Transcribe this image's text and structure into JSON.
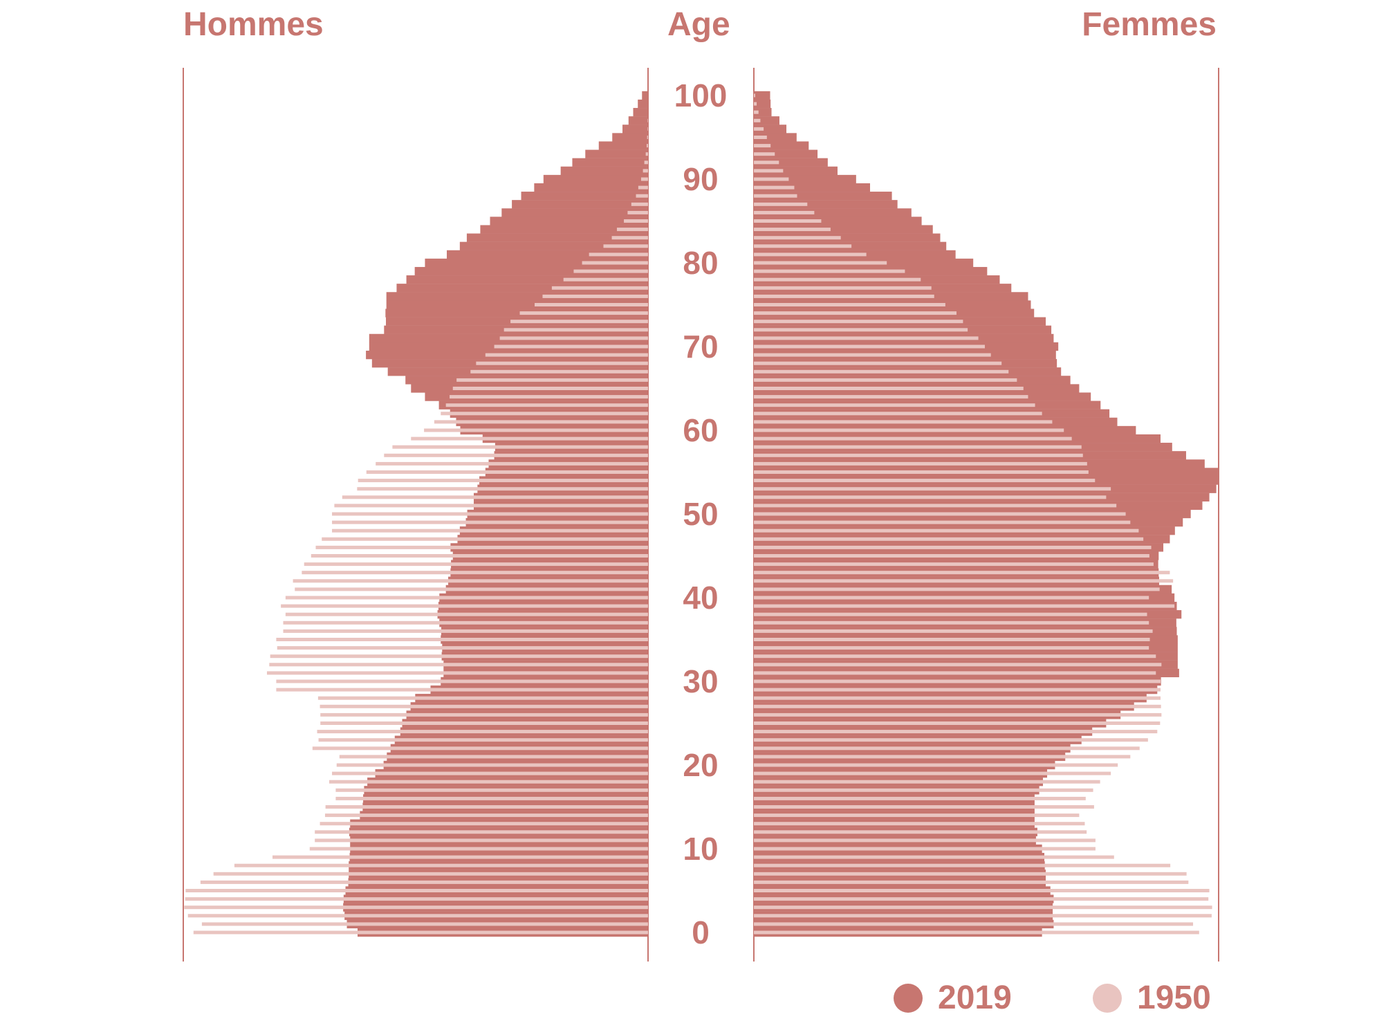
{
  "headers": {
    "men": "Hommes",
    "age": "Age",
    "women": "Femmes"
  },
  "colors": {
    "current": "#c77670",
    "past": "#e9c4c0",
    "axis": "#c77670"
  },
  "legend": [
    {
      "label": "2019",
      "color": "#c77670"
    },
    {
      "label": "1950",
      "color": "#e9c4c0"
    }
  ],
  "chart_data": {
    "type": "bar",
    "orientation": "horizontal",
    "subtype": "population-pyramid",
    "y_ticks": [
      0,
      10,
      20,
      30,
      40,
      50,
      60,
      70,
      80,
      90,
      100
    ],
    "bar_value_range": [
      0,
      1
    ],
    "series": [
      {
        "name": "2019",
        "values": {
          "men": [
            0.625,
            0.648,
            0.653,
            0.656,
            0.655,
            0.651,
            0.645,
            0.644,
            0.644,
            0.642,
            0.641,
            0.641,
            0.643,
            0.641,
            0.62,
            0.614,
            0.613,
            0.611,
            0.604,
            0.587,
            0.569,
            0.562,
            0.554,
            0.545,
            0.533,
            0.529,
            0.52,
            0.511,
            0.501,
            0.468,
            0.446,
            0.44,
            0.44,
            0.444,
            0.443,
            0.446,
            0.445,
            0.449,
            0.453,
            0.451,
            0.449,
            0.435,
            0.43,
            0.425,
            0.424,
            0.42,
            0.425,
            0.41,
            0.405,
            0.392,
            0.389,
            0.375,
            0.375,
            0.367,
            0.363,
            0.35,
            0.343,
            0.331,
            0.329,
            0.356,
            0.404,
            0.413,
            0.426,
            0.45,
            0.48,
            0.51,
            0.522,
            0.56,
            0.594,
            0.607,
            0.6,
            0.6,
            0.568,
            0.564,
            0.565,
            0.563,
            0.563,
            0.541,
            0.52,
            0.502,
            0.48,
            0.433,
            0.405,
            0.39,
            0.361,
            0.34,
            0.315,
            0.293,
            0.273,
            0.245,
            0.225,
            0.188,
            0.163,
            0.135,
            0.106,
            0.077,
            0.055,
            0.042,
            0.032,
            0.022,
            0.013
          ],
          "women": [
            0.62,
            0.645,
            0.643,
            0.643,
            0.645,
            0.638,
            0.628,
            0.628,
            0.626,
            0.625,
            0.62,
            0.607,
            0.61,
            0.604,
            0.604,
            0.604,
            0.604,
            0.614,
            0.622,
            0.631,
            0.648,
            0.67,
            0.681,
            0.705,
            0.728,
            0.758,
            0.789,
            0.818,
            0.845,
            0.868,
            0.876,
            0.915,
            0.912,
            0.912,
            0.912,
            0.912,
            0.91,
            0.909,
            0.92,
            0.91,
            0.905,
            0.899,
            0.872,
            0.871,
            0.87,
            0.871,
            0.881,
            0.895,
            0.906,
            0.923,
            0.94,
            0.965,
            0.98,
            0.995,
            0.999,
            1.0,
            0.97,
            0.93,
            0.9,
            0.875,
            0.822,
            0.782,
            0.765,
            0.746,
            0.725,
            0.7,
            0.681,
            0.661,
            0.652,
            0.65,
            0.655,
            0.645,
            0.64,
            0.628,
            0.603,
            0.596,
            0.59,
            0.554,
            0.529,
            0.502,
            0.472,
            0.434,
            0.414,
            0.401,
            0.385,
            0.361,
            0.339,
            0.309,
            0.297,
            0.25,
            0.22,
            0.18,
            0.159,
            0.137,
            0.118,
            0.092,
            0.07,
            0.055,
            0.038,
            0.036,
            0.035
          ]
        }
      },
      {
        "name": "1950",
        "values": {
          "men": [
            0.978,
            0.96,
            0.99,
            0.998,
            0.996,
            0.995,
            0.963,
            0.935,
            0.89,
            0.808,
            0.728,
            0.717,
            0.717,
            0.706,
            0.695,
            0.694,
            0.672,
            0.672,
            0.686,
            0.68,
            0.67,
            0.664,
            0.722,
            0.709,
            0.712,
            0.705,
            0.705,
            0.706,
            0.71,
            0.8,
            0.8,
            0.82,
            0.815,
            0.813,
            0.798,
            0.8,
            0.785,
            0.785,
            0.78,
            0.79,
            0.78,
            0.76,
            0.764,
            0.745,
            0.74,
            0.725,
            0.715,
            0.702,
            0.68,
            0.68,
            0.68,
            0.675,
            0.658,
            0.626,
            0.624,
            0.606,
            0.586,
            0.568,
            0.55,
            0.51,
            0.482,
            0.46,
            0.446,
            0.435,
            0.427,
            0.42,
            0.412,
            0.382,
            0.37,
            0.35,
            0.331,
            0.319,
            0.31,
            0.296,
            0.276,
            0.244,
            0.227,
            0.207,
            0.182,
            0.16,
            0.142,
            0.127,
            0.096,
            0.078,
            0.067,
            0.052,
            0.044,
            0.036,
            0.026,
            0.021,
            0.015,
            0.011,
            0.008,
            0.005,
            0.003,
            0.002,
            0.001,
            0.001,
            0.0,
            0.0,
            0.0
          ],
          "women": [
            0.958,
            0.945,
            0.985,
            0.986,
            0.978,
            0.98,
            0.935,
            0.931,
            0.896,
            0.775,
            0.735,
            0.735,
            0.716,
            0.712,
            0.7,
            0.732,
            0.714,
            0.73,
            0.745,
            0.768,
            0.783,
            0.81,
            0.83,
            0.848,
            0.868,
            0.874,
            0.877,
            0.876,
            0.875,
            0.875,
            0.875,
            0.865,
            0.877,
            0.865,
            0.85,
            0.852,
            0.858,
            0.85,
            0.846,
            0.905,
            0.85,
            0.873,
            0.902,
            0.895,
            0.86,
            0.851,
            0.855,
            0.838,
            0.828,
            0.81,
            0.8,
            0.78,
            0.758,
            0.768,
            0.734,
            0.72,
            0.717,
            0.708,
            0.705,
            0.684,
            0.667,
            0.642,
            0.62,
            0.605,
            0.59,
            0.58,
            0.566,
            0.548,
            0.533,
            0.51,
            0.497,
            0.483,
            0.46,
            0.45,
            0.436,
            0.412,
            0.388,
            0.382,
            0.359,
            0.325,
            0.286,
            0.242,
            0.21,
            0.187,
            0.165,
            0.145,
            0.13,
            0.115,
            0.093,
            0.087,
            0.075,
            0.063,
            0.054,
            0.045,
            0.036,
            0.028,
            0.021,
            0.014,
            0.01,
            0.006,
            0.003
          ]
        }
      }
    ]
  }
}
